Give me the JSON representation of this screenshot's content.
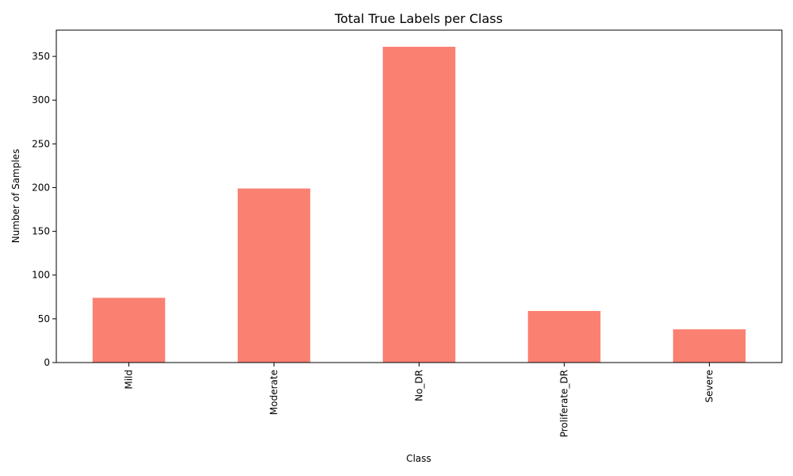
{
  "chart_data": {
    "type": "bar",
    "title": "Total True Labels per Class",
    "xlabel": "Class",
    "ylabel": "Number of Samples",
    "categories": [
      "Mild",
      "Moderate",
      "No_DR",
      "Proliferate_DR",
      "Severe"
    ],
    "values": [
      74,
      199,
      361,
      59,
      38
    ],
    "ylim": [
      0,
      380
    ],
    "yticks": [
      0,
      50,
      100,
      150,
      200,
      250,
      300,
      350
    ],
    "xtick_rotation_deg": 90,
    "grid": false,
    "legend": "none",
    "bar_color": "#fa8072",
    "axis_color": "#000000"
  }
}
